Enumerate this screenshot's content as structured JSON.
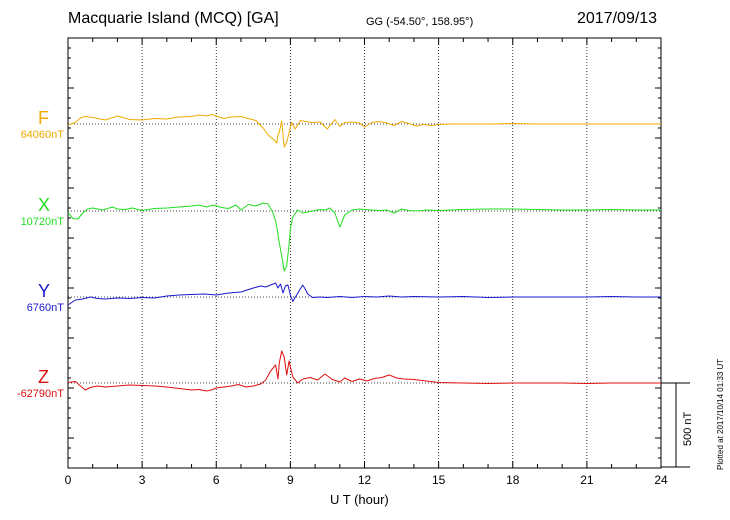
{
  "header": {
    "station": "Macquarie Island (MCQ)  [GA]",
    "coords": "GG (-54.50°, 158.95°)",
    "date": "2017/09/13"
  },
  "footer": {
    "plotted": "Plotted at 2017/10/14 01:33 UT",
    "scale_label": "500 nT"
  },
  "colors": {
    "F": "#f0aa00",
    "X": "#22dd22",
    "Y": "#1a1acc",
    "Z": "#e01010"
  },
  "chart_data": {
    "type": "line",
    "title": "Macquarie Island (MCQ)  [GA]",
    "xlabel": "U T (hour)",
    "ylabel": "",
    "xlim": [
      0,
      24
    ],
    "xticks": [
      "0",
      "3",
      "6",
      "9",
      "12",
      "15",
      "18",
      "21",
      "24"
    ],
    "grid": true,
    "scale_bar_nT": 500,
    "series": [
      {
        "name": "F",
        "baseline_label": "64060nT",
        "color": "#f0aa00",
        "x": [
          0,
          0.3,
          0.5,
          0.7,
          1.0,
          1.5,
          2.0,
          2.5,
          3.0,
          3.5,
          4.0,
          4.5,
          5.0,
          5.3,
          5.6,
          5.8,
          6.0,
          6.3,
          6.6,
          7.0,
          7.3,
          7.6,
          7.9,
          8.1,
          8.3,
          8.45,
          8.5,
          8.55,
          8.65,
          8.75,
          8.85,
          8.95,
          9.05,
          9.2,
          9.4,
          9.6,
          9.9,
          10.2,
          10.5,
          10.8,
          11.0,
          11.2,
          11.5,
          11.8,
          12.0,
          12.3,
          12.6,
          12.9,
          13.2,
          13.5,
          13.8,
          14.1,
          14.4,
          14.7,
          15.0,
          15.5,
          16,
          17,
          18,
          19,
          20,
          21,
          22,
          23,
          24
        ],
        "y": [
          -10,
          15,
          60,
          75,
          65,
          40,
          80,
          45,
          40,
          55,
          50,
          70,
          75,
          90,
          80,
          95,
          80,
          55,
          70,
          75,
          55,
          35,
          -40,
          -110,
          -150,
          -190,
          -110,
          -80,
          30,
          -230,
          -180,
          -90,
          15,
          -50,
          35,
          25,
          15,
          20,
          -50,
          45,
          -25,
          15,
          20,
          10,
          -30,
          15,
          25,
          10,
          -15,
          25,
          5,
          -20,
          -5,
          -15,
          -5,
          0,
          0,
          0,
          5,
          0,
          0,
          0,
          0,
          0,
          0
        ]
      },
      {
        "name": "X",
        "baseline_label": "10720nT",
        "color": "#22dd22",
        "x": [
          0,
          0.2,
          0.4,
          0.6,
          0.8,
          1.0,
          1.4,
          1.8,
          2.0,
          2.3,
          2.6,
          3.0,
          3.5,
          4.0,
          4.5,
          5.0,
          5.3,
          5.6,
          5.9,
          6.2,
          6.5,
          6.8,
          7.0,
          7.3,
          7.6,
          7.9,
          8.1,
          8.3,
          8.4,
          8.5,
          8.55,
          8.65,
          8.75,
          8.85,
          8.95,
          9.0,
          9.1,
          9.3,
          9.5,
          9.7,
          10.0,
          10.2,
          10.4,
          10.6,
          10.8,
          11.0,
          11.2,
          11.5,
          11.8,
          12.0,
          12.3,
          12.6,
          12.9,
          13.2,
          13.5,
          13.8,
          14.1,
          14.5,
          15.0,
          15.5,
          16,
          17,
          18,
          19,
          20,
          21,
          22,
          23,
          24
        ],
        "y": [
          -15,
          -75,
          -80,
          -20,
          20,
          30,
          10,
          40,
          20,
          15,
          30,
          5,
          25,
          30,
          40,
          50,
          60,
          40,
          60,
          35,
          25,
          60,
          10,
          65,
          50,
          80,
          70,
          -20,
          -100,
          -230,
          -320,
          -450,
          -600,
          -550,
          -330,
          -180,
          -60,
          10,
          -20,
          -10,
          5,
          15,
          10,
          30,
          -20,
          -160,
          -40,
          10,
          20,
          15,
          10,
          5,
          10,
          -20,
          20,
          5,
          0,
          10,
          5,
          10,
          15,
          20,
          20,
          15,
          10,
          10,
          15,
          10,
          10
        ]
      },
      {
        "name": "Y",
        "baseline_label": "6760nT",
        "color": "#1a1acc",
        "x": [
          0,
          0.3,
          0.6,
          0.9,
          1.2,
          1.5,
          2.0,
          2.5,
          3.0,
          3.5,
          4.0,
          4.5,
          5.0,
          5.5,
          6.0,
          6.5,
          7.0,
          7.5,
          7.8,
          8.0,
          8.2,
          8.4,
          8.5,
          8.6,
          8.7,
          8.8,
          8.9,
          9.0,
          9.1,
          9.3,
          9.5,
          9.6,
          9.7,
          9.9,
          10.2,
          10.5,
          11.0,
          11.5,
          12.0,
          12.5,
          13.0,
          13.5,
          14.0,
          15.0,
          16,
          17,
          18,
          19,
          20,
          21,
          22,
          23,
          24
        ],
        "y": [
          -80,
          -30,
          -20,
          0,
          -15,
          -20,
          -10,
          -15,
          -5,
          -10,
          10,
          20,
          25,
          30,
          20,
          40,
          50,
          90,
          110,
          100,
          120,
          140,
          90,
          130,
          40,
          110,
          120,
          20,
          -45,
          40,
          120,
          80,
          30,
          -5,
          0,
          -5,
          5,
          -5,
          5,
          0,
          10,
          0,
          5,
          0,
          5,
          -5,
          0,
          0,
          0,
          0,
          5,
          0,
          0
        ]
      },
      {
        "name": "Z",
        "baseline_label": "-62790nT",
        "color": "#e01010",
        "x": [
          0,
          0.3,
          0.5,
          0.7,
          0.9,
          1.2,
          1.5,
          2.0,
          2.5,
          3.0,
          3.5,
          4.0,
          4.5,
          5.0,
          5.3,
          5.6,
          5.8,
          6.0,
          6.3,
          6.6,
          6.9,
          7.2,
          7.5,
          7.8,
          8.0,
          8.2,
          8.4,
          8.5,
          8.55,
          8.65,
          8.75,
          8.85,
          8.95,
          9.0,
          9.1,
          9.3,
          9.5,
          9.8,
          10.1,
          10.4,
          10.7,
          11.0,
          11.2,
          11.5,
          11.8,
          12.1,
          12.4,
          12.7,
          13.0,
          13.3,
          13.6,
          14.0,
          14.5,
          15.0,
          16,
          17,
          18,
          19,
          20,
          21,
          22,
          23,
          24
        ],
        "y": [
          5,
          15,
          -30,
          -70,
          -45,
          -30,
          -40,
          -30,
          -20,
          -25,
          -30,
          -40,
          -55,
          -70,
          -65,
          -80,
          -70,
          -50,
          -40,
          -30,
          -15,
          -40,
          -30,
          -10,
          30,
          120,
          180,
          40,
          200,
          320,
          260,
          80,
          220,
          160,
          60,
          0,
          40,
          55,
          30,
          90,
          35,
          10,
          50,
          15,
          40,
          20,
          45,
          55,
          80,
          50,
          40,
          35,
          20,
          5,
          0,
          -5,
          0,
          0,
          0,
          -5,
          0,
          0,
          0
        ]
      }
    ]
  }
}
